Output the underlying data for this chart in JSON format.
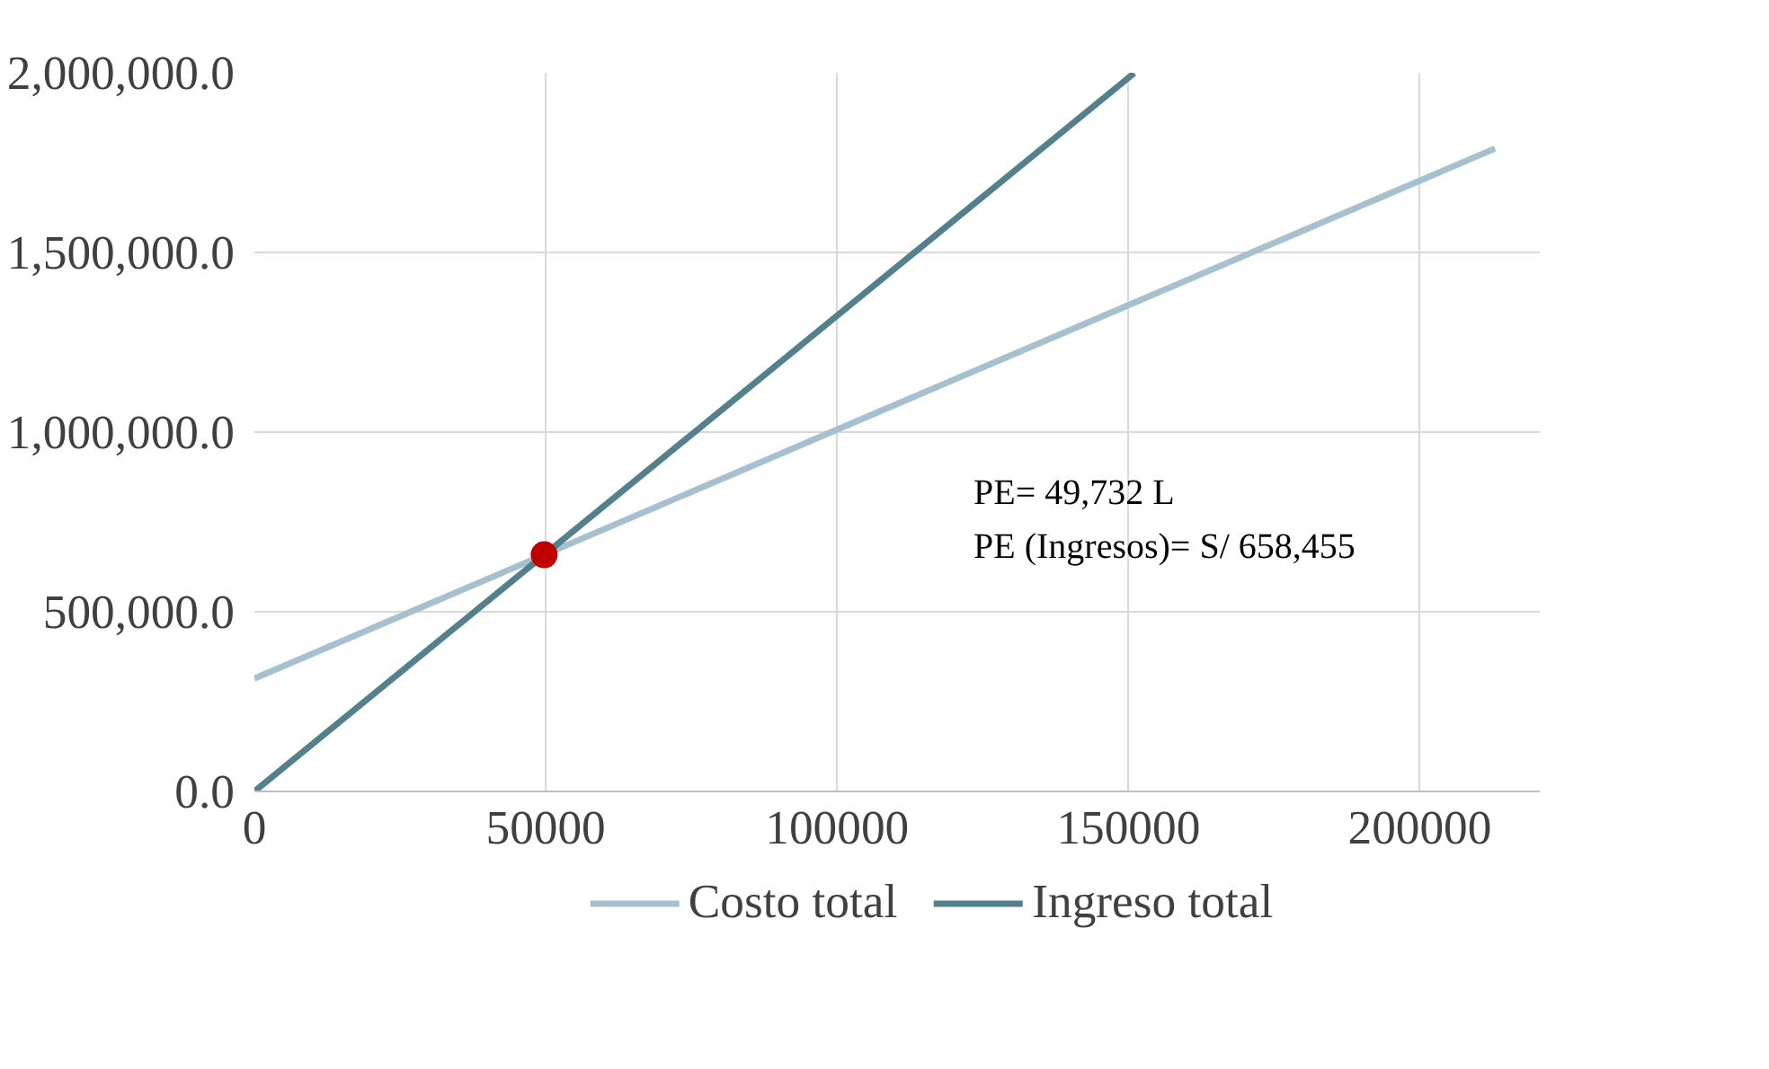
{
  "chart_data": {
    "type": "line",
    "xlim": [
      0,
      220600
    ],
    "ylim": [
      0,
      2000000
    ],
    "xticks": [
      0,
      50000,
      100000,
      150000,
      200000
    ],
    "yticks": [
      {
        "value": 0,
        "label": "0.0"
      },
      {
        "value": 500000,
        "label": "500,000.0"
      },
      {
        "value": 1000000,
        "label": "1,000,000.0"
      },
      {
        "value": 1500000,
        "label": "1,500,000.0"
      },
      {
        "value": 2000000,
        "label": "2,000,000.0"
      }
    ],
    "grid": true,
    "legend": "bottom",
    "line_style": "solid",
    "series": [
      {
        "name": "Costo total",
        "color": "#a5c0cf",
        "x": [
          0,
          212900
        ],
        "values": [
          314000,
          1789000
        ]
      },
      {
        "name": "Ingreso total",
        "color": "#53808c",
        "x": [
          0,
          151000
        ],
        "values": [
          0,
          1999000
        ]
      },
      {
        "type": "scatter",
        "marker": "circle",
        "color": "#c00000",
        "x": [
          49732
        ],
        "values": [
          658455
        ]
      }
    ],
    "annotations": [
      "PE= 49,732 L",
      "PE (Ingresos)= S/ 658,455"
    ]
  }
}
